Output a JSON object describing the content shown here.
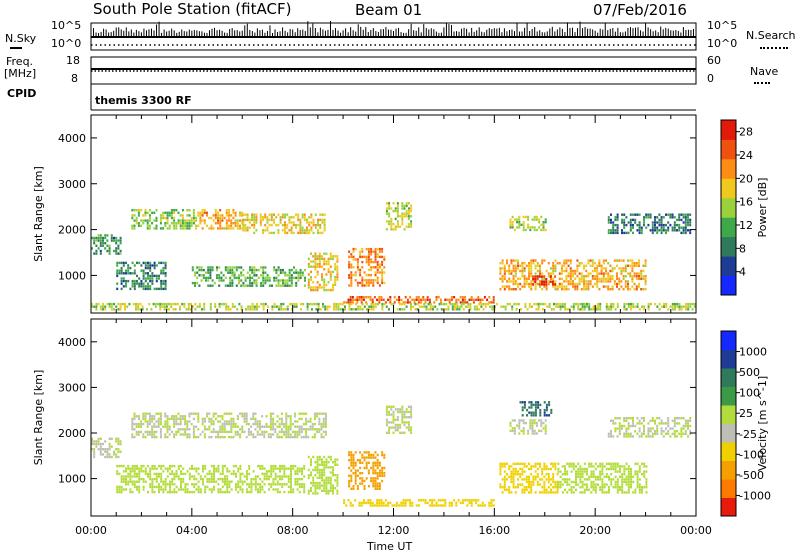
{
  "header": {
    "station": "South Pole Station (fitACF)",
    "beam": "Beam 01",
    "date": "07/Feb/2016"
  },
  "side_labels": {
    "nsky": "N.Sky",
    "freq_line1": "Freq.",
    "freq_line2": "[MHz]",
    "cpid": "CPID",
    "nsearch": "N.Search",
    "nave": "Nave"
  },
  "strip_ticks": {
    "nsky_top": "10^5",
    "nsky_bottom": "10^0",
    "nsearch_top": "10^5",
    "nsearch_bottom": "10^0",
    "freq_top": "18",
    "freq_bottom": "8",
    "nave_top": "60",
    "nave_bottom": "0"
  },
  "cpid_text": "themis 3300 RF",
  "x_axis": {
    "label": "Time UT",
    "ticks": [
      "00:00",
      "04:00",
      "08:00",
      "12:00",
      "16:00",
      "20:00",
      "00:00"
    ]
  },
  "colors": {
    "power_scale": [
      "#1428ff",
      "#1e3c96",
      "#2e7a5a",
      "#3ea84a",
      "#9bd23c",
      "#f0c81e",
      "#ff8c14",
      "#f05010",
      "#e21a0a"
    ],
    "velocity_scale": [
      "#e81a0a",
      "#ff7a00",
      "#f5a000",
      "#f0d000",
      "#bebeb4",
      "#b2dc3c",
      "#3a9a46",
      "#2e7a5a",
      "#1e3c96",
      "#1428ff"
    ]
  },
  "chart_data": [
    {
      "type": "heatmap",
      "title": "",
      "xlabel": "Time UT",
      "ylabel": "Slant Range [km]",
      "xlim": [
        "00:00",
        "24:00"
      ],
      "ylim": [
        180,
        4500
      ],
      "yticks": [
        1000,
        2000,
        3000,
        4000
      ],
      "colorbar": {
        "label": "Power [dB]",
        "ticks": [
          4,
          8,
          12,
          16,
          20,
          24,
          28
        ],
        "range": [
          0,
          30
        ]
      },
      "regions": [
        {
          "t0": 0.0,
          "t1": 1.2,
          "r0": 1500,
          "r1": 1900,
          "value": 10
        },
        {
          "t0": 1.6,
          "t1": 4.3,
          "r0": 2050,
          "r1": 2450,
          "value": 14
        },
        {
          "t0": 4.3,
          "t1": 6.0,
          "r0": 2050,
          "r1": 2450,
          "value": 20
        },
        {
          "t0": 6.0,
          "t1": 9.3,
          "r0": 1900,
          "r1": 2350,
          "value": 18
        },
        {
          "t0": 1.0,
          "t1": 3.0,
          "r0": 700,
          "r1": 1300,
          "value": 9
        },
        {
          "t0": 4.0,
          "t1": 8.5,
          "r0": 800,
          "r1": 1200,
          "value": 12
        },
        {
          "t0": 8.6,
          "t1": 9.8,
          "r0": 700,
          "r1": 1500,
          "value": 18
        },
        {
          "t0": 10.2,
          "t1": 11.6,
          "r0": 800,
          "r1": 1600,
          "value": 22
        },
        {
          "t0": 10.0,
          "t1": 16.0,
          "r0": 400,
          "r1": 550,
          "value": 24
        },
        {
          "t0": 11.7,
          "t1": 12.7,
          "r0": 2000,
          "r1": 2600,
          "value": 16
        },
        {
          "t0": 16.2,
          "t1": 22.0,
          "r0": 700,
          "r1": 1350,
          "value": 20
        },
        {
          "t0": 17.5,
          "t1": 18.5,
          "r0": 800,
          "r1": 1000,
          "value": 28
        },
        {
          "t0": 16.6,
          "t1": 18.0,
          "r0": 2000,
          "r1": 2300,
          "value": 16
        },
        {
          "t0": 20.5,
          "t1": 23.8,
          "r0": 1900,
          "r1": 2350,
          "value": 8
        },
        {
          "t0": 0.0,
          "t1": 24.0,
          "r0": 250,
          "r1": 400,
          "value": 16
        }
      ]
    },
    {
      "type": "heatmap",
      "title": "",
      "xlabel": "Time UT",
      "ylabel": "Slant Range [km]",
      "xlim": [
        "00:00",
        "24:00"
      ],
      "ylim": [
        180,
        4500
      ],
      "yticks": [
        1000,
        2000,
        3000,
        4000
      ],
      "colorbar": {
        "label": "Velocity [m s^-1]",
        "ticks": [
          -1000,
          -500,
          -100,
          -25,
          25,
          100,
          500,
          1000
        ],
        "range": [
          -1200,
          1200
        ]
      },
      "regions": [
        {
          "t0": 0.0,
          "t1": 1.2,
          "r0": 1500,
          "r1": 1900,
          "value": 0
        },
        {
          "t0": 1.6,
          "t1": 9.3,
          "r0": 1900,
          "r1": 2450,
          "value": 0
        },
        {
          "t0": 1.0,
          "t1": 8.5,
          "r0": 700,
          "r1": 1300,
          "value": 120
        },
        {
          "t0": 8.6,
          "t1": 9.8,
          "r0": 700,
          "r1": 1500,
          "value": 150
        },
        {
          "t0": 10.2,
          "t1": 11.6,
          "r0": 800,
          "r1": 1600,
          "value": -600
        },
        {
          "t0": 10.0,
          "t1": 16.0,
          "r0": 400,
          "r1": 550,
          "value": -300
        },
        {
          "t0": 11.7,
          "t1": 12.7,
          "r0": 2000,
          "r1": 2600,
          "value": 0
        },
        {
          "t0": 16.2,
          "t1": 18.5,
          "r0": 700,
          "r1": 1350,
          "value": -300
        },
        {
          "t0": 18.5,
          "t1": 22.0,
          "r0": 700,
          "r1": 1350,
          "value": 80
        },
        {
          "t0": 16.6,
          "t1": 18.0,
          "r0": 2000,
          "r1": 2300,
          "value": 0
        },
        {
          "t0": 20.5,
          "t1": 23.8,
          "r0": 1900,
          "r1": 2350,
          "value": 0
        },
        {
          "t0": 17.0,
          "t1": 18.3,
          "r0": 2400,
          "r1": 2700,
          "value": 700
        }
      ]
    }
  ]
}
